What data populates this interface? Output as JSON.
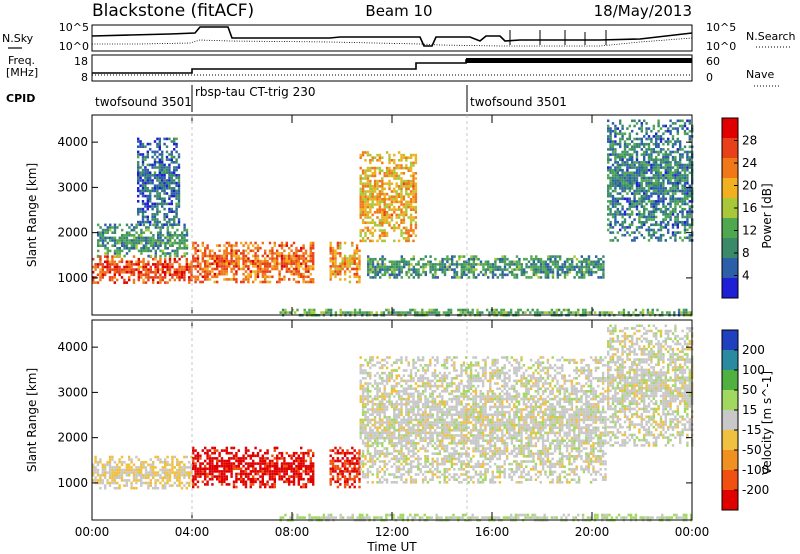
{
  "header": {
    "station": "Blackstone (fitACF)",
    "beam": "Beam 10",
    "date": "18/May/2013"
  },
  "noise_panel": {
    "left_label": "N.Sky",
    "right_label": "N.Search",
    "left_ticks": [
      "10^5",
      "10^0"
    ],
    "right_ticks": [
      "10^5",
      "10^0"
    ]
  },
  "freq_panel": {
    "left_label_1": "Freq.",
    "left_label_2": "[MHz]",
    "right_label": "Nave",
    "left_ticks": [
      "18",
      "8"
    ],
    "right_ticks": [
      "60",
      "0"
    ]
  },
  "cpid": {
    "label": "CPID",
    "segments": [
      {
        "name": "twofsound 3501",
        "start": "00:00",
        "end": "04:00"
      },
      {
        "name": "rbsp-tau CT-trig 230",
        "start": "04:00",
        "end": "15:00"
      },
      {
        "name": "twofsound 3501",
        "start": "15:00",
        "end": "24:00"
      }
    ]
  },
  "colors": {
    "power": [
      "#1f1fd6",
      "#2d5fa8",
      "#3a8a6a",
      "#4fa84f",
      "#a8c83a",
      "#f0b020",
      "#f07818",
      "#e84018",
      "#e00000"
    ],
    "velocity": [
      "#e00000",
      "#f05010",
      "#f09020",
      "#f0c040",
      "#c8c8c8",
      "#a0d860",
      "#50b040",
      "#2a8aa0",
      "#2040c0"
    ]
  },
  "chart_data": [
    {
      "type": "heatmap",
      "title": "Power",
      "ylabel": "Slant Range [km]",
      "xlabel": "Time UT",
      "x_ticks": [
        "00:00",
        "04:00",
        "08:00",
        "12:00",
        "16:00",
        "20:00",
        "00:00"
      ],
      "x_range_hours": [
        0,
        24
      ],
      "y_ticks": [
        "1000",
        "2000",
        "3000",
        "4000"
      ],
      "ylim": [
        180,
        4600
      ],
      "colorbar_label": "Power [dB]",
      "colorbar_ticks": [
        "4",
        "8",
        "12",
        "16",
        "20",
        "24",
        "28"
      ],
      "colorbar_range": [
        0,
        32
      ],
      "echo_regions": [
        {
          "t_start": 0.0,
          "t_end": 4.0,
          "r_min": 900,
          "r_max": 1500,
          "value": 26
        },
        {
          "t_start": 0.2,
          "t_end": 3.8,
          "r_min": 1500,
          "r_max": 2200,
          "value": 10
        },
        {
          "t_start": 1.8,
          "t_end": 3.5,
          "r_min": 2200,
          "r_max": 4100,
          "value": 6
        },
        {
          "t_start": 4.0,
          "t_end": 8.8,
          "r_min": 900,
          "r_max": 1800,
          "value": 24
        },
        {
          "t_start": 9.5,
          "t_end": 10.7,
          "r_min": 900,
          "r_max": 1800,
          "value": 22
        },
        {
          "t_start": 10.7,
          "t_end": 13.0,
          "r_min": 1800,
          "r_max": 3800,
          "value": 20
        },
        {
          "t_start": 11.0,
          "t_end": 20.5,
          "r_min": 1000,
          "r_max": 1500,
          "value": 10
        },
        {
          "t_start": 20.6,
          "t_end": 24.0,
          "r_min": 1800,
          "r_max": 4500,
          "value": 8
        },
        {
          "t_start": 7.5,
          "t_end": 24.0,
          "r_min": 180,
          "r_max": 320,
          "value": 12
        }
      ]
    },
    {
      "type": "heatmap",
      "title": "Velocity",
      "ylabel": "Slant Range [km]",
      "xlabel": "Time UT",
      "x_ticks": [
        "00:00",
        "04:00",
        "08:00",
        "12:00",
        "16:00",
        "20:00",
        "00:00"
      ],
      "x_range_hours": [
        0,
        24
      ],
      "y_ticks": [
        "1000",
        "2000",
        "3000",
        "4000"
      ],
      "ylim": [
        180,
        4600
      ],
      "colorbar_label": "Velocity [m s^-1]",
      "colorbar_ticks": [
        "200",
        "100",
        "50",
        "15",
        "-15",
        "-50",
        "-100",
        "-200"
      ],
      "colorbar_range": [
        -250,
        250
      ],
      "echo_regions": [
        {
          "t_start": 0.0,
          "t_end": 4.0,
          "r_min": 900,
          "r_max": 1600,
          "value": -30
        },
        {
          "t_start": 4.0,
          "t_end": 8.8,
          "r_min": 900,
          "r_max": 1800,
          "value": -220
        },
        {
          "t_start": 9.5,
          "t_end": 10.7,
          "r_min": 900,
          "r_max": 1800,
          "value": -200
        },
        {
          "t_start": 10.7,
          "t_end": 20.5,
          "r_min": 1000,
          "r_max": 3800,
          "value": 0
        },
        {
          "t_start": 20.6,
          "t_end": 24.0,
          "r_min": 1800,
          "r_max": 4500,
          "value": 0
        },
        {
          "t_start": 7.5,
          "t_end": 24.0,
          "r_min": 180,
          "r_max": 320,
          "value": 30
        }
      ]
    }
  ]
}
